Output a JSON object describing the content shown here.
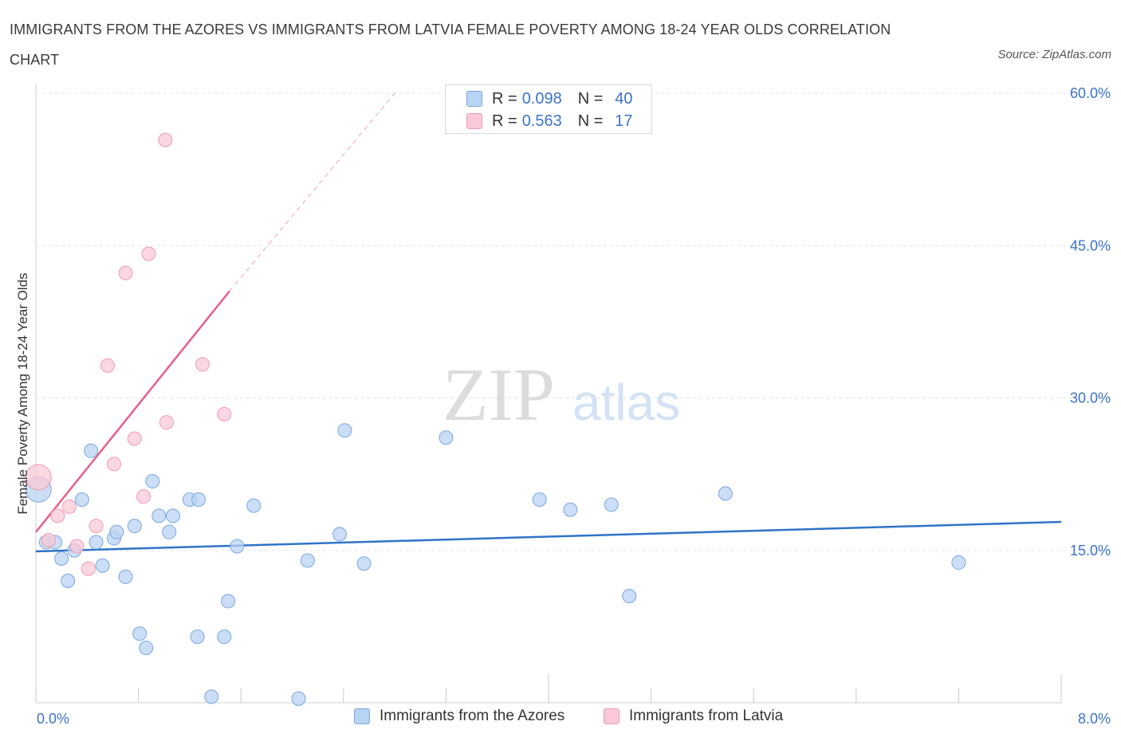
{
  "title": "IMMIGRANTS FROM THE AZORES VS IMMIGRANTS FROM LATVIA FEMALE POVERTY AMONG 18-24 YEAR OLDS CORRELATION CHART",
  "source": "Source: ZipAtlas.com",
  "watermark": {
    "zip": "ZIP",
    "atlas": "atlas"
  },
  "legend": {
    "rows": [
      {
        "r_label": "R = ",
        "r_value": "0.098",
        "n_label": "N = ",
        "n_value": "40"
      },
      {
        "r_label": "R = ",
        "r_value": "0.563",
        "n_label": "N = ",
        "n_value": "17"
      }
    ]
  },
  "bottom_legend": {
    "azores": "Immigrants from the Azores",
    "latvia": "Immigrants from Latvia"
  },
  "colors": {
    "azores_fill": "#b9d3f3",
    "azores_stroke": "#7aa7df",
    "azores_line": "#2f73c8",
    "latvia_fill": "#f9c9d7",
    "latvia_stroke": "#ef9ab3",
    "latvia_line": "#e5608a",
    "axis_label": "#3b73c8",
    "grid": "#e3e3e3"
  },
  "chart_data": {
    "type": "scatter",
    "ylabel": "Female Poverty Among 18-24 Year Olds",
    "xlim": [
      0,
      8
    ],
    "ylim": [
      0,
      60
    ],
    "x_tick_labels": {
      "left": "0.0%",
      "right": "8.0%"
    },
    "y_ticks": [
      {
        "value": 15,
        "label": "15.0%"
      },
      {
        "value": 30,
        "label": "30.0%"
      },
      {
        "value": 45,
        "label": "45.0%"
      },
      {
        "value": 60,
        "label": "60.0%"
      }
    ],
    "series": [
      {
        "name": "Immigrants from the Azores",
        "R": 0.098,
        "N": 40,
        "trend": {
          "x": [
            0,
            8
          ],
          "y": [
            14.9,
            17.8
          ]
        },
        "points": [
          {
            "x": 0.02,
            "y": 21.0,
            "big": true
          },
          {
            "x": 0.08,
            "y": 15.8
          },
          {
            "x": 0.15,
            "y": 15.8
          },
          {
            "x": 0.2,
            "y": 14.2
          },
          {
            "x": 0.25,
            "y": 12.0
          },
          {
            "x": 0.3,
            "y": 15.0
          },
          {
            "x": 0.36,
            "y": 20.0
          },
          {
            "x": 0.43,
            "y": 24.8
          },
          {
            "x": 0.47,
            "y": 15.8
          },
          {
            "x": 0.52,
            "y": 13.5
          },
          {
            "x": 0.61,
            "y": 16.2
          },
          {
            "x": 0.63,
            "y": 16.8
          },
          {
            "x": 0.7,
            "y": 12.4
          },
          {
            "x": 0.77,
            "y": 17.4
          },
          {
            "x": 0.81,
            "y": 6.8
          },
          {
            "x": 0.86,
            "y": 5.4
          },
          {
            "x": 0.91,
            "y": 21.8
          },
          {
            "x": 0.96,
            "y": 18.4
          },
          {
            "x": 1.04,
            "y": 16.8
          },
          {
            "x": 1.07,
            "y": 18.4
          },
          {
            "x": 1.2,
            "y": 20.0
          },
          {
            "x": 1.27,
            "y": 20.0
          },
          {
            "x": 1.26,
            "y": 6.5
          },
          {
            "x": 1.37,
            "y": 0.6
          },
          {
            "x": 1.47,
            "y": 6.5
          },
          {
            "x": 1.5,
            "y": 10.0
          },
          {
            "x": 1.57,
            "y": 15.4
          },
          {
            "x": 1.7,
            "y": 19.4
          },
          {
            "x": 2.05,
            "y": 0.4
          },
          {
            "x": 2.12,
            "y": 14.0
          },
          {
            "x": 2.37,
            "y": 16.6
          },
          {
            "x": 2.41,
            "y": 26.8
          },
          {
            "x": 2.56,
            "y": 13.7
          },
          {
            "x": 3.2,
            "y": 26.1
          },
          {
            "x": 3.93,
            "y": 20.0
          },
          {
            "x": 4.17,
            "y": 19.0
          },
          {
            "x": 4.49,
            "y": 19.5
          },
          {
            "x": 4.63,
            "y": 10.5
          },
          {
            "x": 5.38,
            "y": 20.6
          },
          {
            "x": 7.2,
            "y": 13.8
          }
        ]
      },
      {
        "name": "Immigrants from Latvia",
        "R": 0.563,
        "N": 17,
        "trend": {
          "x": [
            0,
            1.51
          ],
          "y": [
            16.8,
            40.5
          ]
        },
        "trend_dashed": {
          "x": [
            1.51,
            2.8
          ],
          "y": [
            40.5,
            60.0
          ]
        },
        "points": [
          {
            "x": 0.02,
            "y": 22.2,
            "big": true
          },
          {
            "x": 0.1,
            "y": 16.0
          },
          {
            "x": 0.17,
            "y": 18.4
          },
          {
            "x": 0.26,
            "y": 19.3
          },
          {
            "x": 0.32,
            "y": 15.4
          },
          {
            "x": 0.41,
            "y": 13.2
          },
          {
            "x": 0.47,
            "y": 17.4
          },
          {
            "x": 0.56,
            "y": 33.2
          },
          {
            "x": 0.61,
            "y": 23.5
          },
          {
            "x": 0.7,
            "y": 42.3
          },
          {
            "x": 0.77,
            "y": 26.0
          },
          {
            "x": 0.84,
            "y": 20.3
          },
          {
            "x": 0.88,
            "y": 44.2
          },
          {
            "x": 1.01,
            "y": 55.4
          },
          {
            "x": 1.02,
            "y": 27.6
          },
          {
            "x": 1.3,
            "y": 33.3
          },
          {
            "x": 1.47,
            "y": 28.4
          }
        ]
      }
    ]
  }
}
